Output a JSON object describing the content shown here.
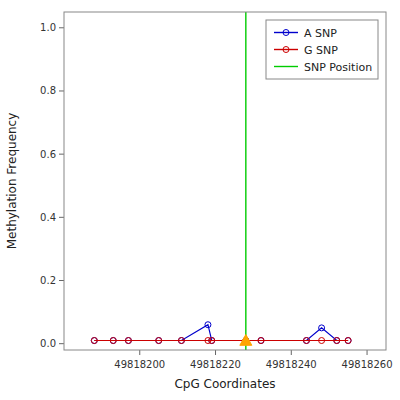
{
  "chart_data": {
    "type": "line",
    "xlabel": "CpG Coordinates",
    "ylabel": "Methylation Frequency",
    "x": [
      49818188,
      49818193,
      49818197,
      49818205,
      49818211,
      49818218,
      49818219,
      49818228,
      49818232,
      49818244,
      49818248,
      49818252,
      49818255
    ],
    "series": [
      {
        "name": "A SNP",
        "color": "#0000cc",
        "marker": "circle",
        "values": [
          0.01,
          0.01,
          0.01,
          0.01,
          0.01,
          0.06,
          0.01,
          0.01,
          0.01,
          0.01,
          0.05,
          0.01,
          0.01
        ]
      },
      {
        "name": "G SNP",
        "color": "#cc0000",
        "marker": "circle",
        "values": [
          0.01,
          0.01,
          0.01,
          0.01,
          0.01,
          0.01,
          0.01,
          0.01,
          0.01,
          0.01,
          0.01,
          0.01,
          0.01
        ]
      },
      {
        "name": "SNP Position",
        "type": "vline",
        "color": "#00cc00",
        "x": 49818228
      }
    ],
    "snp_marker": {
      "x": 49818228,
      "y": 0.01,
      "color": "#FFA500",
      "marker": "triangle"
    },
    "xlim": [
      49818180,
      49818265
    ],
    "ylim": [
      -0.02,
      1.05
    ],
    "xticks": [
      49818200,
      49818220,
      49818240,
      49818260
    ],
    "yticks": [
      {
        "value": 0,
        "label": "0.0"
      },
      0.2,
      0.4,
      0.6,
      0.8,
      {
        "value": 1,
        "label": "1.0"
      }
    ],
    "grid": false,
    "legend": "upper right"
  }
}
